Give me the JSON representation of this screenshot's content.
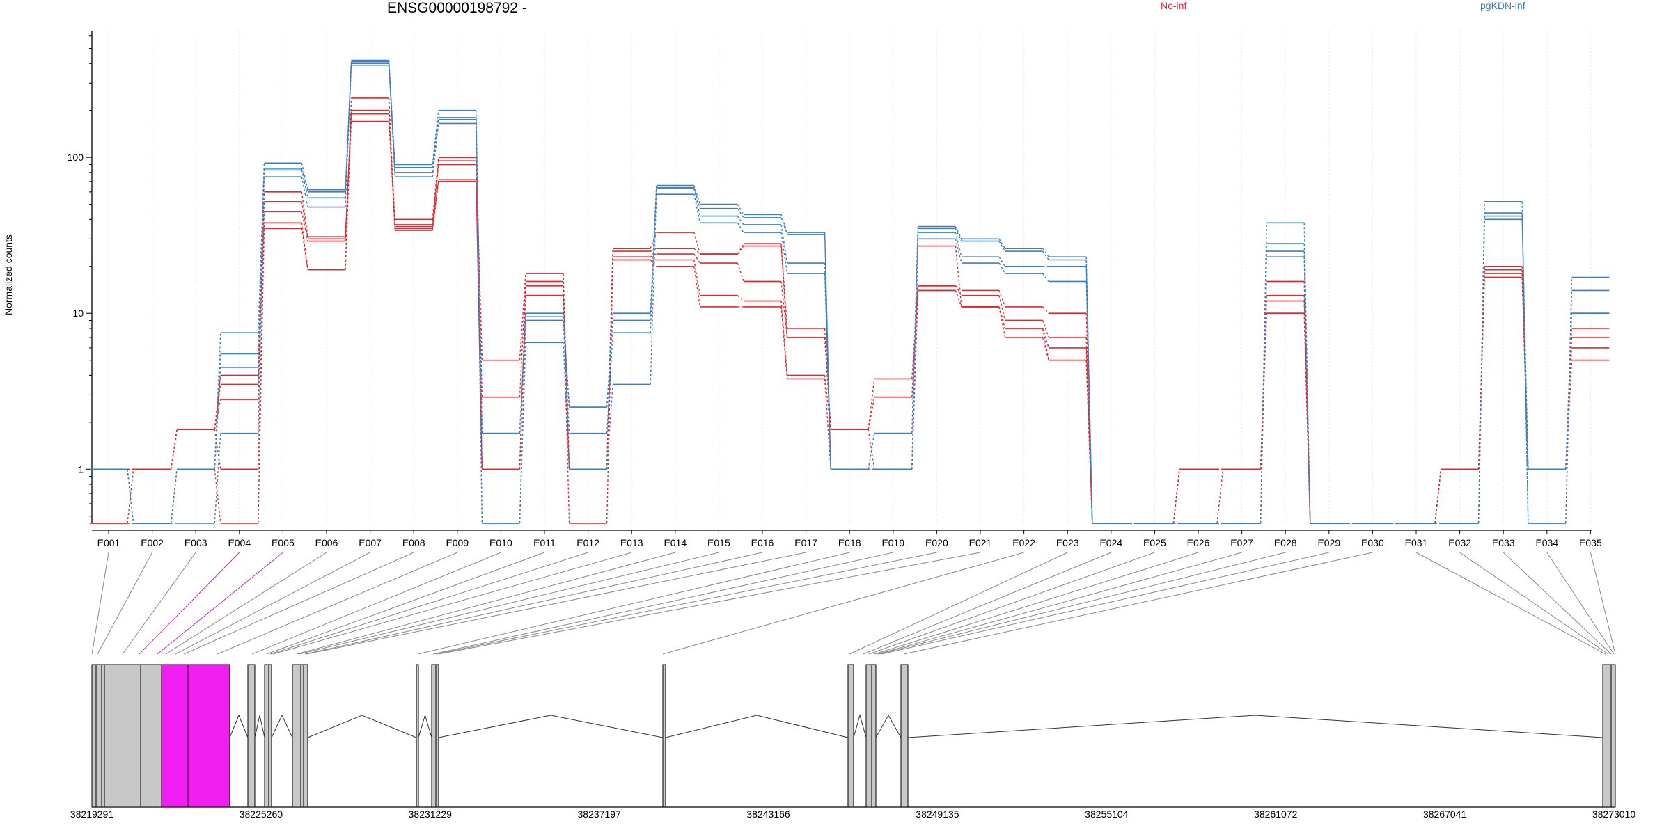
{
  "chart_data": {
    "type": "line",
    "title": "ENSG00000198792 -",
    "ylabel": "Normalized counts",
    "xlabel": "",
    "yscale": "log",
    "ylim": [
      0.45,
      650
    ],
    "yticks": [
      1,
      10,
      100
    ],
    "ytick_labels": [
      "1",
      "10",
      "100"
    ],
    "grid": "vertical dotted",
    "legend_position": "top",
    "colors": {
      "No-inf": "#e0282e",
      "pgKDN-inf": "#3b7fbf"
    },
    "categories": [
      "E001",
      "E002",
      "E003",
      "E004",
      "E005",
      "E006",
      "E007",
      "E008",
      "E009",
      "E010",
      "E011",
      "E012",
      "E013",
      "E014",
      "E015",
      "E016",
      "E017",
      "E018",
      "E019",
      "E020",
      "E021",
      "E022",
      "E023",
      "E024",
      "E025",
      "E026",
      "E027",
      "E028",
      "E029",
      "E030",
      "E031",
      "E032",
      "E033",
      "E034",
      "E035"
    ],
    "series": [
      {
        "group": "No-inf",
        "values": [
          1,
          1,
          1.8,
          4.0,
          60,
          31,
          190,
          40,
          100,
          5.0,
          18,
          1,
          26,
          33,
          24,
          28,
          8,
          1.8,
          3.8,
          15,
          14,
          11,
          10,
          0.45,
          0.45,
          1,
          1,
          16,
          0.45,
          0.45,
          0.45,
          1,
          20,
          1,
          8
        ]
      },
      {
        "group": "No-inf",
        "values": [
          1,
          1,
          1.8,
          3.5,
          52,
          30,
          200,
          37,
          95,
          2.9,
          16,
          1,
          25,
          26,
          24,
          27,
          7,
          1.8,
          2.9,
          15,
          13,
          9,
          7,
          0.45,
          0.45,
          1,
          1,
          13,
          0.45,
          0.45,
          0.45,
          1,
          19,
          1,
          7
        ]
      },
      {
        "group": "No-inf",
        "values": [
          0.45,
          1,
          1.8,
          2.8,
          45,
          29,
          170,
          36,
          90,
          1,
          15,
          1,
          23,
          24,
          21,
          16,
          7,
          1.8,
          2.9,
          14,
          11,
          8,
          6,
          0.45,
          0.45,
          1,
          1,
          12,
          0.45,
          0.45,
          0.45,
          1,
          18,
          1,
          6
        ]
      },
      {
        "group": "No-inf",
        "values": [
          1,
          1,
          1.8,
          1,
          38,
          19,
          200,
          35,
          72,
          1,
          13,
          1,
          22,
          22,
          13,
          12,
          4,
          1.8,
          1,
          14,
          11,
          8,
          5,
          0.45,
          0.45,
          0.45,
          1,
          10,
          0.45,
          0.45,
          0.45,
          1,
          17,
          1,
          5
        ]
      },
      {
        "group": "No-inf",
        "values": [
          0.45,
          0.45,
          1,
          0.45,
          35,
          19,
          240,
          34,
          70,
          1,
          13,
          0.45,
          22,
          20,
          11,
          11,
          3.8,
          1,
          1,
          27,
          11,
          7,
          5,
          0.45,
          0.45,
          1,
          1,
          10,
          0.45,
          0.45,
          0.45,
          1,
          17,
          1,
          5
        ]
      },
      {
        "group": "pgKDN-inf",
        "values": [
          1,
          0.45,
          1,
          7.5,
          92,
          62,
          420,
          90,
          200,
          1.7,
          10,
          2.5,
          10,
          66,
          50,
          43,
          33,
          1,
          1.7,
          36,
          30,
          26,
          23,
          0.45,
          0.45,
          0.45,
          0.45,
          38,
          0.45,
          0.45,
          0.45,
          0.45,
          52,
          0.45,
          17
        ]
      },
      {
        "group": "pgKDN-inf",
        "values": [
          1,
          0.45,
          1,
          5.5,
          85,
          60,
          410,
          86,
          180,
          1.7,
          9.5,
          2.5,
          9,
          64,
          47,
          41,
          32,
          1,
          1.7,
          35,
          29,
          25,
          22,
          0.45,
          0.45,
          0.45,
          0.45,
          28,
          0.45,
          0.45,
          0.45,
          0.45,
          44,
          0.45,
          14
        ]
      },
      {
        "group": "pgKDN-inf",
        "values": [
          1,
          0.45,
          1,
          4.5,
          83,
          55,
          400,
          80,
          175,
          0.45,
          9,
          1.7,
          7.5,
          63,
          42,
          37,
          21,
          1,
          1,
          33,
          23,
          20,
          20,
          0.45,
          0.45,
          0.45,
          0.45,
          25,
          0.45,
          0.45,
          0.45,
          0.45,
          42,
          1,
          10
        ]
      },
      {
        "group": "pgKDN-inf",
        "values": [
          1,
          0.45,
          0.45,
          1.7,
          75,
          48,
          390,
          75,
          165,
          0.45,
          6.5,
          1,
          3.5,
          58,
          38,
          33,
          18,
          1,
          1,
          30,
          21,
          18,
          16,
          0.45,
          0.45,
          0.45,
          0.45,
          23,
          0.45,
          0.45,
          0.45,
          0.45,
          40,
          1,
          10
        ]
      }
    ],
    "genome": {
      "start_label": "38219291",
      "tick_labels": [
        "38219291",
        "38225260",
        "38231229",
        "38237197",
        "38243166",
        "38249135",
        "38255104",
        "38261072",
        "38267041",
        "38273010"
      ],
      "highlighted_exons": [
        "E004",
        "E005"
      ],
      "exon_color": "#c8c8c8",
      "highlight_color": "#f01ef0"
    }
  },
  "legend": {
    "no_inf": "No-inf",
    "pgkdn_inf": "pgKDN-inf"
  }
}
